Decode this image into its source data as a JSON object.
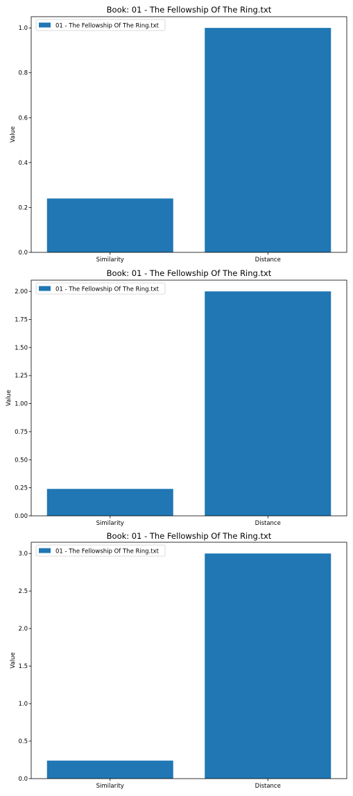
{
  "chart_data": [
    {
      "type": "bar",
      "title": "Book: 01 - The Fellowship Of The Ring.txt",
      "categories": [
        "Similarity",
        "Distance"
      ],
      "values": [
        0.24,
        1.0
      ],
      "xlabel": "",
      "ylabel": "Value",
      "ylim": [
        0,
        1.05
      ],
      "yticks": [
        "0.0",
        "0.2",
        "0.4",
        "0.6",
        "0.8",
        "1.0"
      ],
      "ytick_values": [
        0,
        0.2,
        0.4,
        0.6,
        0.8,
        1.0
      ],
      "legend": "01 - The Fellowship Of The Ring.txt",
      "legend_position": "top-left",
      "color": "#2077b4"
    },
    {
      "type": "bar",
      "title": "Book: 01 - The Fellowship Of The Ring.txt",
      "categories": [
        "Similarity",
        "Distance"
      ],
      "values": [
        0.24,
        2.0
      ],
      "xlabel": "",
      "ylabel": "Value",
      "ylim": [
        0,
        2.1
      ],
      "yticks": [
        "0.00",
        "0.25",
        "0.50",
        "0.75",
        "1.00",
        "1.25",
        "1.50",
        "1.75",
        "2.00"
      ],
      "ytick_values": [
        0,
        0.25,
        0.5,
        0.75,
        1.0,
        1.25,
        1.5,
        1.75,
        2.0
      ],
      "legend": "01 - The Fellowship Of The Ring.txt",
      "legend_position": "top-left",
      "color": "#2077b4"
    },
    {
      "type": "bar",
      "title": "Book: 01 - The Fellowship Of The Ring.txt",
      "categories": [
        "Similarity",
        "Distance"
      ],
      "values": [
        0.24,
        3.0
      ],
      "xlabel": "",
      "ylabel": "Value",
      "ylim": [
        0,
        3.15
      ],
      "yticks": [
        "0.0",
        "0.5",
        "1.0",
        "1.5",
        "2.0",
        "2.5",
        "3.0"
      ],
      "ytick_values": [
        0,
        0.5,
        1.0,
        1.5,
        2.0,
        2.5,
        3.0
      ],
      "legend": "01 - The Fellowship Of The Ring.txt",
      "legend_position": "top-left",
      "color": "#2077b4"
    }
  ]
}
